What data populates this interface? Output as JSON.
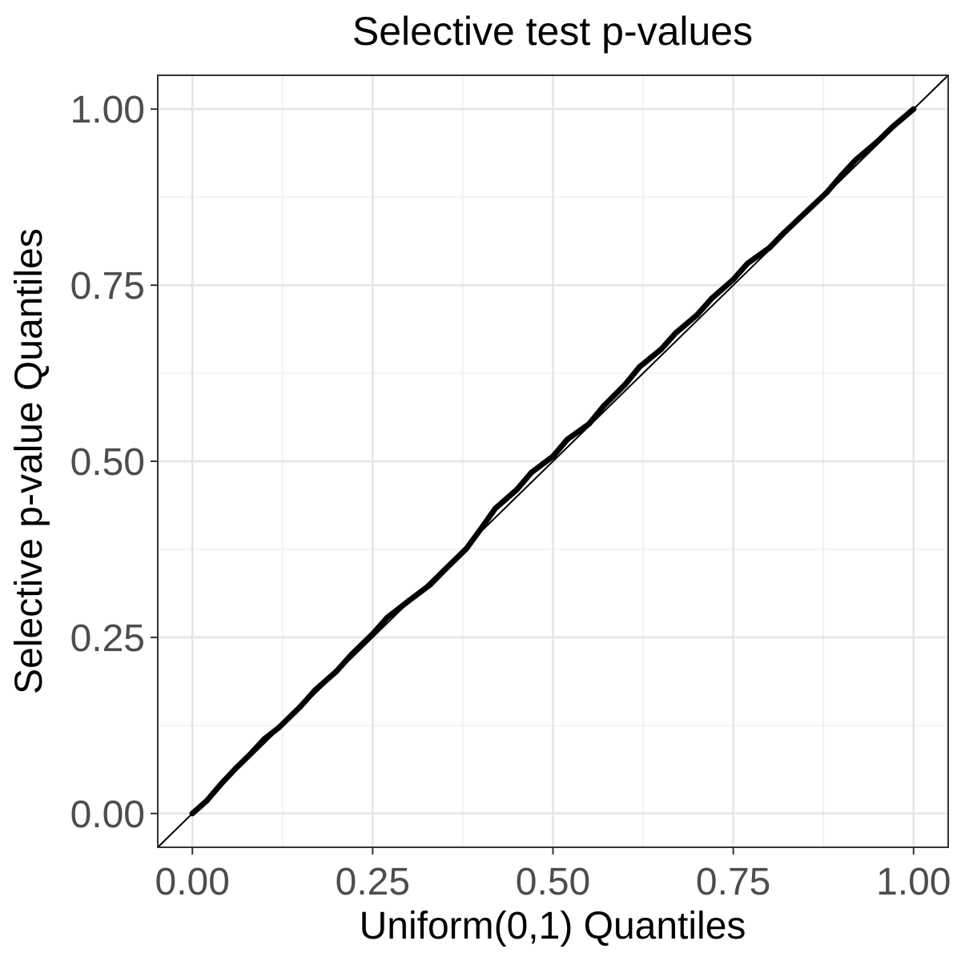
{
  "chart_data": {
    "type": "line",
    "title": "Selective test p-values",
    "xlabel": "Uniform(0,1) Quantiles",
    "ylabel": "Selective p-value Quantiles",
    "xlim": [
      -0.048,
      1.048
    ],
    "ylim": [
      -0.048,
      1.048
    ],
    "x_ticks": [
      0.0,
      0.25,
      0.5,
      0.75,
      1.0
    ],
    "y_ticks": [
      0.0,
      0.25,
      0.5,
      0.75,
      1.0
    ],
    "x_tick_labels": [
      "0.00",
      "0.25",
      "0.50",
      "0.75",
      "1.00"
    ],
    "y_tick_labels": [
      "0.00",
      "0.25",
      "0.50",
      "0.75",
      "1.00"
    ],
    "grid": true,
    "legend": "none",
    "series": [
      {
        "name": "QQ points",
        "x": [
          0.0,
          0.02,
          0.04,
          0.06,
          0.08,
          0.1,
          0.12,
          0.15,
          0.17,
          0.2,
          0.22,
          0.25,
          0.27,
          0.3,
          0.33,
          0.35,
          0.38,
          0.4,
          0.42,
          0.45,
          0.47,
          0.5,
          0.52,
          0.55,
          0.57,
          0.6,
          0.62,
          0.65,
          0.67,
          0.7,
          0.72,
          0.75,
          0.77,
          0.8,
          0.82,
          0.85,
          0.88,
          0.9,
          0.92,
          0.95,
          0.97,
          1.0
        ],
        "y": [
          0.0,
          0.018,
          0.042,
          0.064,
          0.084,
          0.106,
          0.122,
          0.152,
          0.175,
          0.202,
          0.225,
          0.255,
          0.278,
          0.302,
          0.325,
          0.346,
          0.376,
          0.404,
          0.433,
          0.46,
          0.484,
          0.507,
          0.531,
          0.553,
          0.578,
          0.609,
          0.634,
          0.659,
          0.682,
          0.708,
          0.731,
          0.758,
          0.781,
          0.803,
          0.824,
          0.853,
          0.882,
          0.906,
          0.928,
          0.954,
          0.974,
          1.0
        ]
      },
      {
        "name": "reference line y = x",
        "x": [
          -0.048,
          1.048
        ],
        "y": [
          -0.048,
          1.048
        ]
      }
    ]
  }
}
